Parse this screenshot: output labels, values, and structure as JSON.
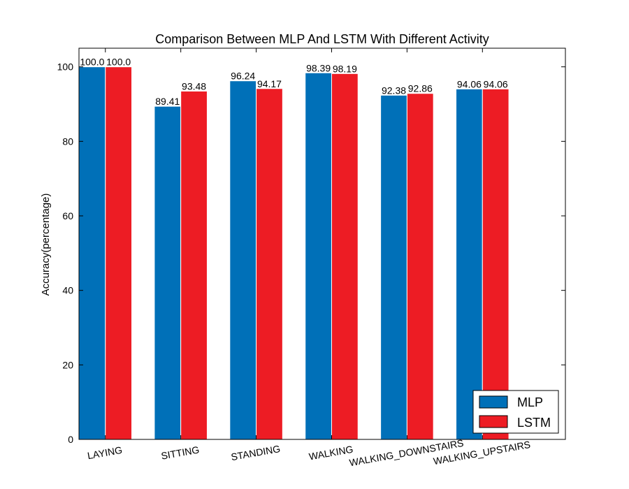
{
  "chart_data": {
    "type": "bar",
    "title": "Comparison Between MLP And LSTM With Different Activity",
    "xlabel": "",
    "ylabel": "Accuracy(percentage)",
    "ylim": [
      0,
      105
    ],
    "yticks": [
      0,
      20,
      40,
      60,
      80,
      100
    ],
    "grid": false,
    "legend_position": "bottom-right",
    "categories": [
      "LAYING",
      "SITTING",
      "STANDING",
      "WALKING",
      "WALKING_DOWNSTAIRS",
      "WALKING_UPSTAIRS"
    ],
    "series": [
      {
        "name": "MLP",
        "color": "#0070b8",
        "values": [
          100.0,
          89.41,
          96.24,
          98.39,
          92.38,
          94.06
        ],
        "labels": [
          "100.0",
          "89.41",
          "96.24",
          "98.39",
          "92.38",
          "94.06"
        ]
      },
      {
        "name": "LSTM",
        "color": "#ed1c24",
        "values": [
          100.0,
          93.48,
          94.17,
          98.19,
          92.86,
          94.06
        ],
        "labels": [
          "100.0",
          "93.48",
          "94.17",
          "98.19",
          "92.86",
          "94.06"
        ]
      }
    ]
  }
}
